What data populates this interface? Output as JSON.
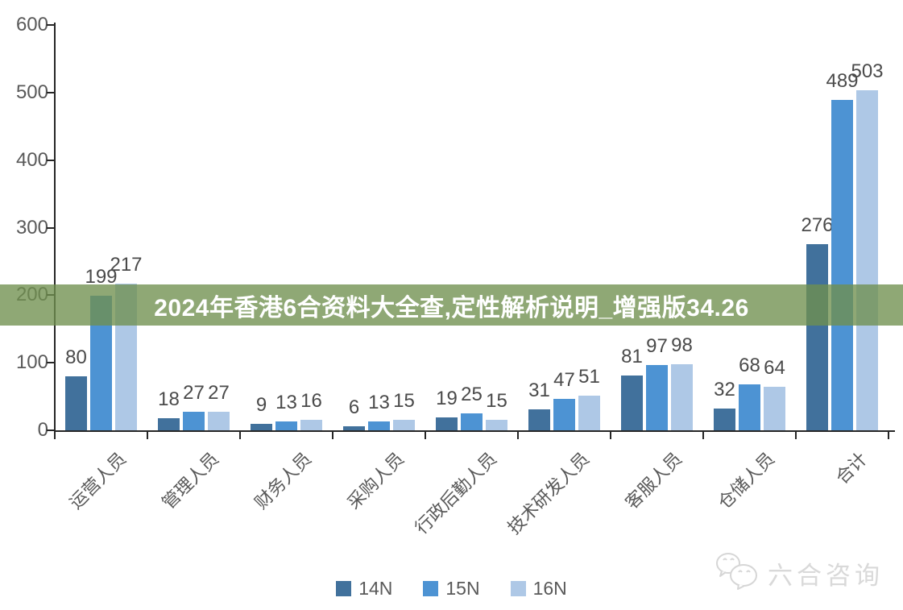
{
  "banner": {
    "text": "2024年香港6合资料大全查,定性解析说明_增强版34.26",
    "background_color": "#6F8F4E",
    "background_opacity": 0.78,
    "text_color": "#FFFFFF"
  },
  "chart_data": {
    "type": "bar",
    "title": "",
    "xlabel": "",
    "ylabel": "",
    "categories": [
      "运营人员",
      "管理人员",
      "财务人员",
      "采购人员",
      "行政后勤人员",
      "技术研发人员",
      "客服人员",
      "仓储人员",
      "合计"
    ],
    "series": [
      {
        "name": "14N",
        "color": "#41719C",
        "values": [
          80,
          18,
          9,
          6,
          19,
          31,
          81,
          32,
          276
        ]
      },
      {
        "name": "15N",
        "color": "#4D93D3",
        "values": [
          199,
          27,
          13,
          13,
          25,
          47,
          97,
          68,
          489
        ]
      },
      {
        "name": "16N",
        "color": "#AEC8E6",
        "values": [
          217,
          27,
          16,
          15,
          15,
          51,
          98,
          64,
          503
        ]
      }
    ],
    "ylim": [
      0,
      600
    ],
    "y_ticks": [
      "0",
      "100",
      "200",
      "300",
      "400",
      "500",
      "600"
    ],
    "grid": false,
    "data_labels": true,
    "legend_position": "bottom"
  },
  "axis_style": {
    "tick_label_color": "#595959",
    "data_label_color": "#4A4A4A",
    "line_color": "#262626"
  },
  "watermark": {
    "icon": "wechat-icon",
    "text": "六合咨询",
    "color": "#D9D9D9"
  }
}
